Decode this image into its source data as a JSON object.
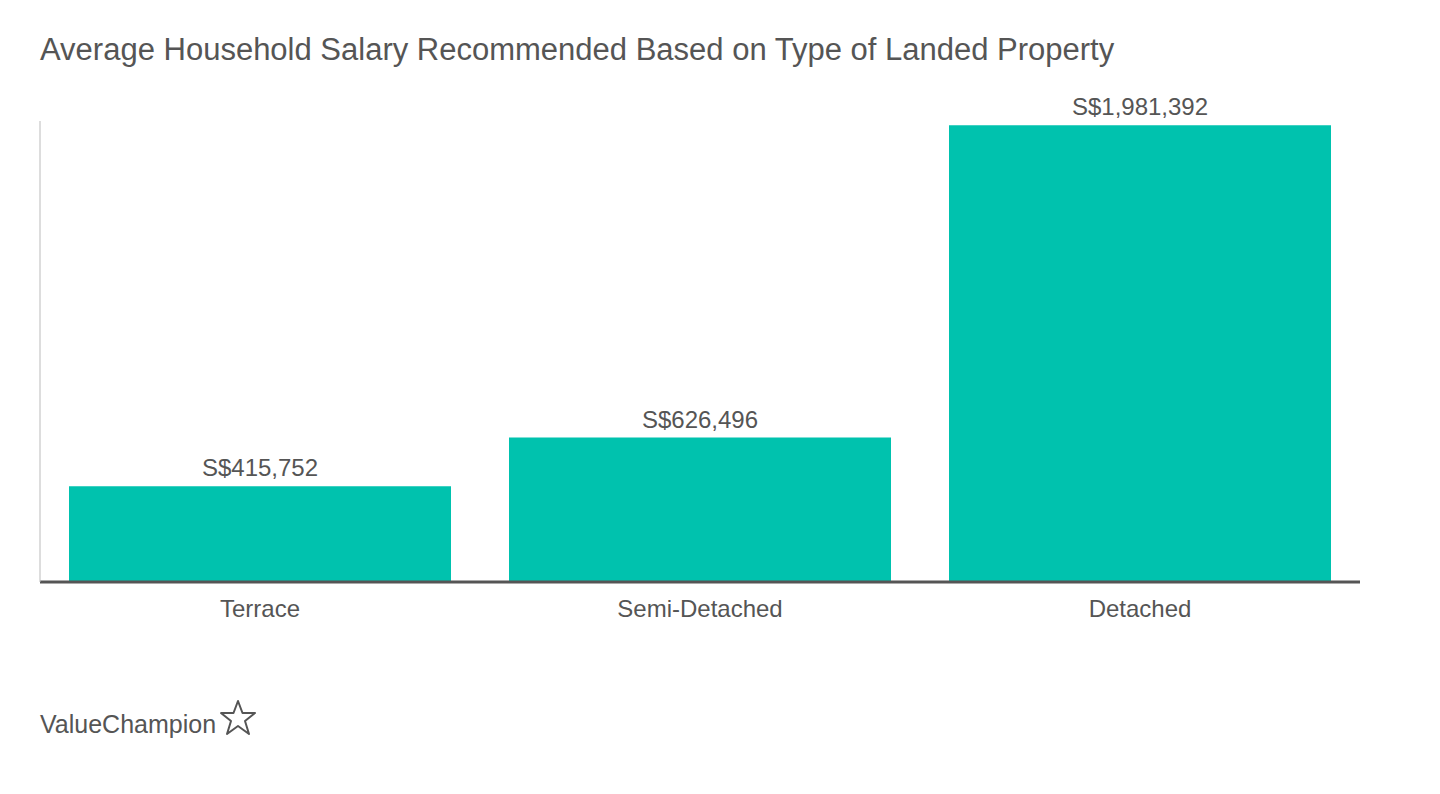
{
  "chart_data": {
    "type": "bar",
    "title": "Average Household Salary Recommended Based on Type of Landed Property",
    "categories": [
      "Terrace",
      "Semi-Detached",
      "Detached"
    ],
    "values": [
      415752,
      626496,
      1981392
    ],
    "value_labels": [
      "S$415,752",
      "S$626,496",
      "S$1,981,392"
    ],
    "color": "#00c2ae",
    "ylim": [
      0,
      2000000
    ],
    "data_labels": true,
    "tick_labels": "x",
    "grid": false,
    "annotations": [
      "ValueChampion"
    ]
  }
}
